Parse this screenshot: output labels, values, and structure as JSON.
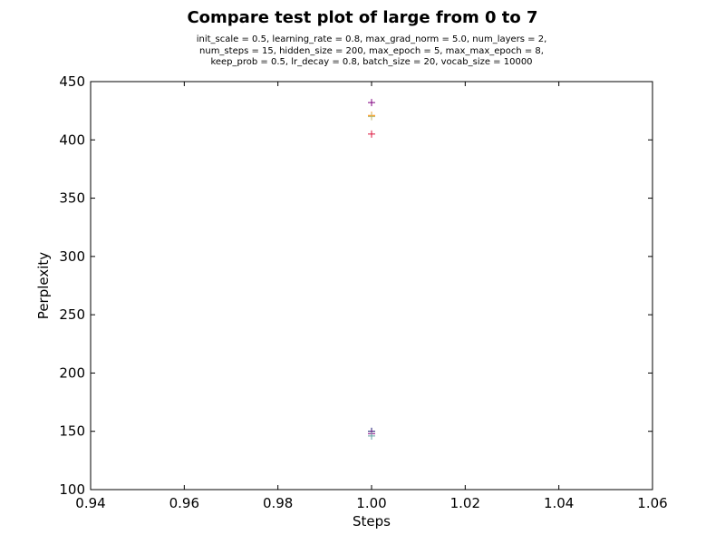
{
  "chart_data": {
    "type": "scatter",
    "title": "Compare test plot of large from 0 to 7",
    "subtitle_lines": [
      "init_scale = 0.5, learning_rate = 0.8, max_grad_norm = 5.0, num_layers = 2,",
      "num_steps = 15, hidden_size = 200, max_epoch = 5, max_max_epoch = 8,",
      "keep_prob = 0.5, lr_decay = 0.8, batch_size = 20, vocab_size = 10000"
    ],
    "xlabel": "Steps",
    "ylabel": "Perplexity",
    "xlim": [
      0.94,
      1.06
    ],
    "ylim": [
      100,
      450
    ],
    "xticks": [
      "0.94",
      "0.96",
      "0.98",
      "1.00",
      "1.02",
      "1.04",
      "1.06"
    ],
    "yticks": [
      "100",
      "150",
      "200",
      "250",
      "300",
      "350",
      "400",
      "450"
    ],
    "marker": "+",
    "grid": false,
    "points": [
      {
        "x": 1.0,
        "y": 432,
        "color": "#800080"
      },
      {
        "x": 1.0,
        "y": 421,
        "color": "#ff8c00"
      },
      {
        "x": 1.0,
        "y": 420,
        "color": "#bdb76b"
      },
      {
        "x": 1.0,
        "y": 405,
        "color": "#dc143c"
      },
      {
        "x": 1.0,
        "y": 150,
        "color": "#191970"
      },
      {
        "x": 1.0,
        "y": 148,
        "color": "#800080"
      },
      {
        "x": 1.0,
        "y": 146,
        "color": "#5f9ea0"
      }
    ]
  }
}
